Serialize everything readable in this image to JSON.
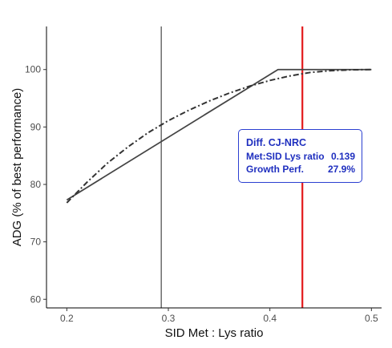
{
  "chart_data": {
    "type": "line",
    "title": "",
    "xlabel": "SID Met : Lys ratio",
    "ylabel": "ADG (% of best performance)",
    "xlim": [
      0.18,
      0.51
    ],
    "ylim": [
      58.5,
      107.5
    ],
    "x_ticks": [
      0.2,
      0.3,
      0.4,
      0.5
    ],
    "x_tick_labels": [
      "0.2",
      "0.3",
      "0.4",
      "0.5"
    ],
    "y_ticks": [
      60,
      70,
      80,
      90,
      100
    ],
    "y_tick_labels": [
      "60",
      "70",
      "80",
      "90",
      "100"
    ],
    "grid": false,
    "legend": "none",
    "series": [
      {
        "style": "solid",
        "color": "#444444",
        "x": [
          0.2,
          0.408,
          0.5
        ],
        "y": [
          77.3,
          100,
          100
        ]
      },
      {
        "style": "dashdot",
        "color": "#333333",
        "x": [
          0.2,
          0.22,
          0.24,
          0.26,
          0.28,
          0.3,
          0.32,
          0.34,
          0.36,
          0.38,
          0.4,
          0.42,
          0.44,
          0.46,
          0.48,
          0.5
        ],
        "y": [
          76.8,
          80.4,
          83.7,
          86.5,
          89.0,
          91.1,
          92.9,
          94.5,
          95.9,
          97.1,
          98.1,
          98.9,
          99.5,
          99.8,
          99.95,
          100
        ]
      }
    ],
    "vlines": [
      {
        "x": 0.293,
        "color": "#222222",
        "width": 1
      },
      {
        "x": 0.432,
        "color": "#e31a1c",
        "width": 2.2
      }
    ]
  },
  "annotation": {
    "title": "Diff. CJ-NRC",
    "rows": [
      {
        "label": "Met:SID Lys ratio",
        "value": "0.139"
      },
      {
        "label": "Growth Perf.",
        "value": "27.9%"
      }
    ],
    "color": "#1f2fbf"
  }
}
